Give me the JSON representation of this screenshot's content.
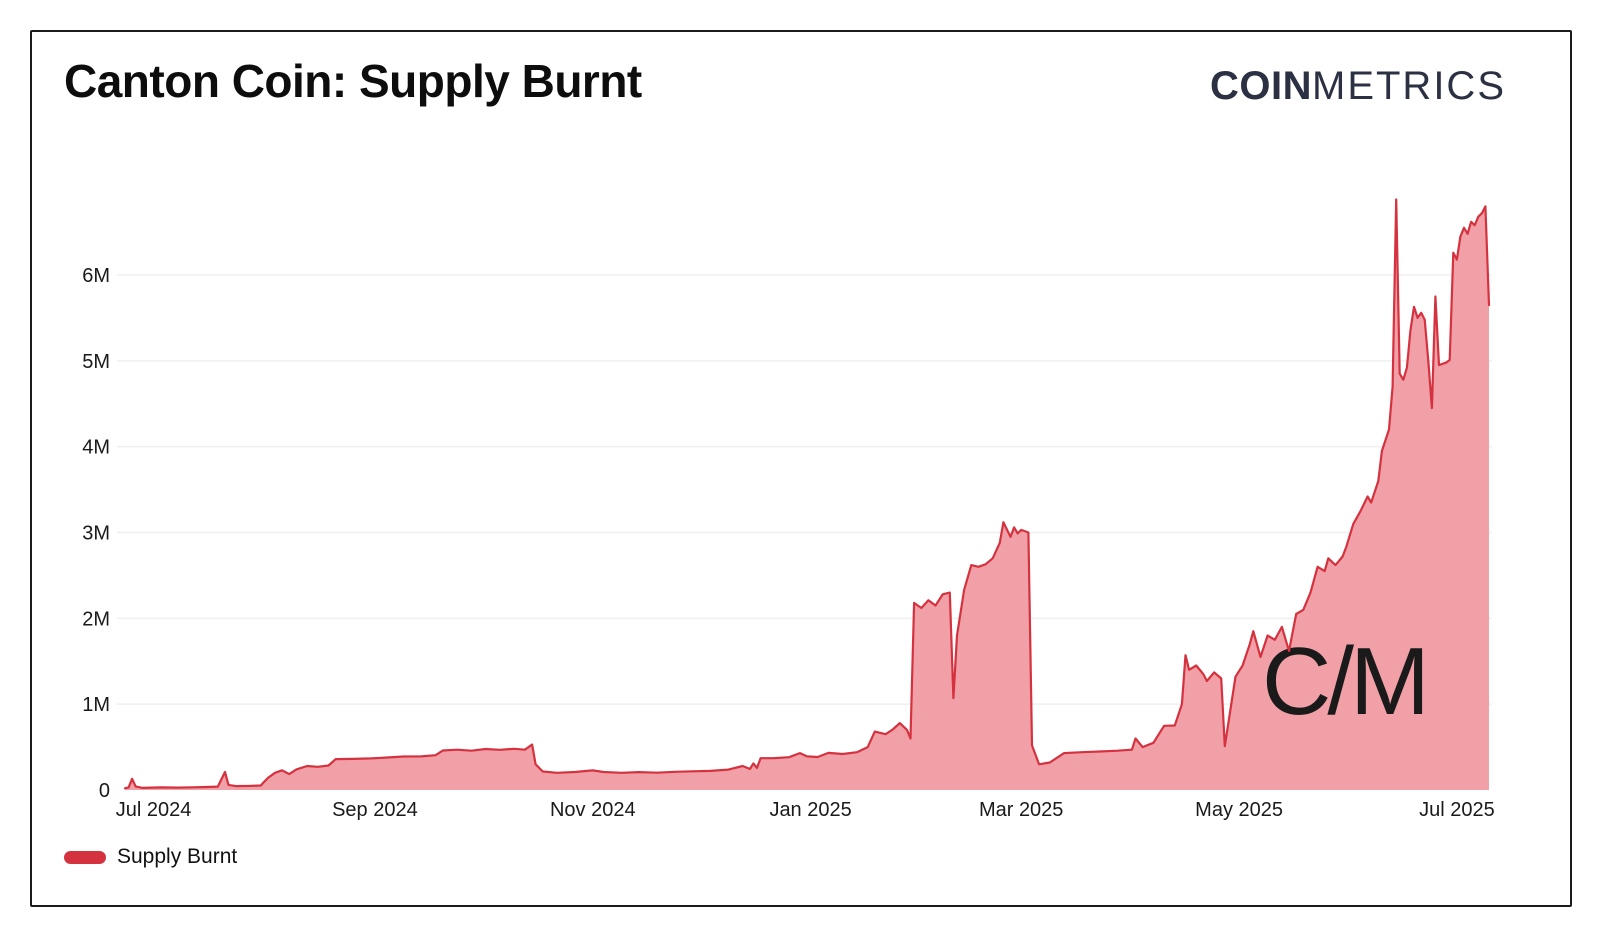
{
  "header": {
    "title": "Canton Coin: Supply Burnt",
    "logo_bold": "COIN",
    "logo_light": "METRICS"
  },
  "legend": {
    "items": [
      {
        "label": "Supply Burnt",
        "color": "#d5323f"
      }
    ]
  },
  "watermark": "C/M",
  "colors": {
    "area_fill": "#f1a0a7",
    "line": "#d5323f",
    "gridline": "#f0eff0",
    "axis_text": "#1a1a1a",
    "logo": "#2b3142",
    "border": "#1b1b1b",
    "watermark": "rgba(255,255,255,0.5)"
  },
  "chart_data": {
    "type": "area",
    "title": "Canton Coin: Supply Burnt",
    "xlabel": "",
    "ylabel": "",
    "grid": "horizontal-only",
    "legend_position": "bottom-left",
    "x_range": [
      "2024-06-23",
      "2025-07-10"
    ],
    "ylim": [
      0,
      7000000
    ],
    "y_ticks": [
      {
        "value": 0,
        "label": "0"
      },
      {
        "value": 1000000,
        "label": "1M"
      },
      {
        "value": 2000000,
        "label": "2M"
      },
      {
        "value": 3000000,
        "label": "3M"
      },
      {
        "value": 4000000,
        "label": "4M"
      },
      {
        "value": 5000000,
        "label": "5M"
      },
      {
        "value": 6000000,
        "label": "6M"
      }
    ],
    "x_ticks": [
      {
        "date": "2024-07-01",
        "label": "Jul 2024"
      },
      {
        "date": "2024-09-01",
        "label": "Sep 2024"
      },
      {
        "date": "2024-11-01",
        "label": "Nov 2024"
      },
      {
        "date": "2025-01-01",
        "label": "Jan 2025"
      },
      {
        "date": "2025-03-01",
        "label": "Mar 2025"
      },
      {
        "date": "2025-05-01",
        "label": "May 2025"
      },
      {
        "date": "2025-07-01",
        "label": "Jul 2025"
      }
    ],
    "series": [
      {
        "name": "Supply Burnt",
        "points": [
          [
            "2024-06-23",
            20000
          ],
          [
            "2024-06-24",
            30000
          ],
          [
            "2024-06-25",
            130000
          ],
          [
            "2024-06-26",
            40000
          ],
          [
            "2024-06-28",
            25000
          ],
          [
            "2024-07-03",
            30000
          ],
          [
            "2024-07-08",
            28000
          ],
          [
            "2024-07-12",
            32000
          ],
          [
            "2024-07-16",
            35000
          ],
          [
            "2024-07-19",
            40000
          ],
          [
            "2024-07-21",
            210000
          ],
          [
            "2024-07-22",
            60000
          ],
          [
            "2024-07-24",
            45000
          ],
          [
            "2024-07-28",
            48000
          ],
          [
            "2024-07-31",
            52000
          ],
          [
            "2024-08-02",
            140000
          ],
          [
            "2024-08-04",
            200000
          ],
          [
            "2024-08-06",
            230000
          ],
          [
            "2024-08-08",
            185000
          ],
          [
            "2024-08-10",
            240000
          ],
          [
            "2024-08-13",
            280000
          ],
          [
            "2024-08-16",
            270000
          ],
          [
            "2024-08-19",
            285000
          ],
          [
            "2024-08-21",
            360000
          ],
          [
            "2024-08-26",
            362000
          ],
          [
            "2024-08-31",
            368000
          ],
          [
            "2024-09-05",
            380000
          ],
          [
            "2024-09-09",
            390000
          ],
          [
            "2024-09-14",
            392000
          ],
          [
            "2024-09-18",
            405000
          ],
          [
            "2024-09-20",
            460000
          ],
          [
            "2024-09-24",
            470000
          ],
          [
            "2024-09-28",
            458000
          ],
          [
            "2024-10-02",
            478000
          ],
          [
            "2024-10-06",
            468000
          ],
          [
            "2024-10-10",
            480000
          ],
          [
            "2024-10-13",
            470000
          ],
          [
            "2024-10-15",
            530000
          ],
          [
            "2024-10-16",
            300000
          ],
          [
            "2024-10-18",
            215000
          ],
          [
            "2024-10-22",
            200000
          ],
          [
            "2024-10-27",
            210000
          ],
          [
            "2024-11-01",
            228000
          ],
          [
            "2024-11-04",
            210000
          ],
          [
            "2024-11-09",
            200000
          ],
          [
            "2024-11-14",
            208000
          ],
          [
            "2024-11-19",
            202000
          ],
          [
            "2024-11-24",
            212000
          ],
          [
            "2024-11-29",
            218000
          ],
          [
            "2024-12-04",
            222000
          ],
          [
            "2024-12-09",
            238000
          ],
          [
            "2024-12-13",
            280000
          ],
          [
            "2024-12-15",
            245000
          ],
          [
            "2024-12-16",
            310000
          ],
          [
            "2024-12-17",
            258000
          ],
          [
            "2024-12-18",
            370000
          ],
          [
            "2024-12-22",
            372000
          ],
          [
            "2024-12-26",
            382000
          ],
          [
            "2024-12-29",
            430000
          ],
          [
            "2024-12-31",
            392000
          ],
          [
            "2025-01-03",
            385000
          ],
          [
            "2025-01-06",
            432000
          ],
          [
            "2025-01-10",
            420000
          ],
          [
            "2025-01-14",
            440000
          ],
          [
            "2025-01-17",
            500000
          ],
          [
            "2025-01-19",
            680000
          ],
          [
            "2025-01-22",
            650000
          ],
          [
            "2025-01-24",
            705000
          ],
          [
            "2025-01-26",
            780000
          ],
          [
            "2025-01-28",
            700000
          ],
          [
            "2025-01-29",
            600000
          ],
          [
            "2025-01-30",
            2180000
          ],
          [
            "2025-02-01",
            2120000
          ],
          [
            "2025-02-03",
            2210000
          ],
          [
            "2025-02-05",
            2150000
          ],
          [
            "2025-02-07",
            2280000
          ],
          [
            "2025-02-09",
            2300000
          ],
          [
            "2025-02-10",
            1070000
          ],
          [
            "2025-02-11",
            1800000
          ],
          [
            "2025-02-13",
            2330000
          ],
          [
            "2025-02-15",
            2620000
          ],
          [
            "2025-02-17",
            2600000
          ],
          [
            "2025-02-19",
            2630000
          ],
          [
            "2025-02-21",
            2700000
          ],
          [
            "2025-02-23",
            2880000
          ],
          [
            "2025-02-24",
            3120000
          ],
          [
            "2025-02-26",
            2950000
          ],
          [
            "2025-02-27",
            3060000
          ],
          [
            "2025-02-28",
            2990000
          ],
          [
            "2025-03-01",
            3030000
          ],
          [
            "2025-03-03",
            3000000
          ],
          [
            "2025-03-04",
            520000
          ],
          [
            "2025-03-06",
            300000
          ],
          [
            "2025-03-09",
            320000
          ],
          [
            "2025-03-13",
            430000
          ],
          [
            "2025-03-18",
            440000
          ],
          [
            "2025-03-23",
            448000
          ],
          [
            "2025-03-28",
            458000
          ],
          [
            "2025-04-01",
            470000
          ],
          [
            "2025-04-02",
            600000
          ],
          [
            "2025-04-04",
            500000
          ],
          [
            "2025-04-07",
            550000
          ],
          [
            "2025-04-10",
            748000
          ],
          [
            "2025-04-13",
            752000
          ],
          [
            "2025-04-15",
            1000000
          ],
          [
            "2025-04-16",
            1570000
          ],
          [
            "2025-04-17",
            1400000
          ],
          [
            "2025-04-19",
            1450000
          ],
          [
            "2025-04-21",
            1350000
          ],
          [
            "2025-04-22",
            1270000
          ],
          [
            "2025-04-24",
            1370000
          ],
          [
            "2025-04-26",
            1300000
          ],
          [
            "2025-04-27",
            510000
          ],
          [
            "2025-04-30",
            1320000
          ],
          [
            "2025-05-02",
            1450000
          ],
          [
            "2025-05-04",
            1700000
          ],
          [
            "2025-05-05",
            1850000
          ],
          [
            "2025-05-07",
            1550000
          ],
          [
            "2025-05-09",
            1800000
          ],
          [
            "2025-05-11",
            1750000
          ],
          [
            "2025-05-13",
            1900000
          ],
          [
            "2025-05-15",
            1620000
          ],
          [
            "2025-05-17",
            2050000
          ],
          [
            "2025-05-19",
            2100000
          ],
          [
            "2025-05-21",
            2300000
          ],
          [
            "2025-05-23",
            2600000
          ],
          [
            "2025-05-25",
            2550000
          ],
          [
            "2025-05-26",
            2700000
          ],
          [
            "2025-05-28",
            2620000
          ],
          [
            "2025-05-30",
            2720000
          ],
          [
            "2025-05-31",
            2830000
          ],
          [
            "2025-06-02",
            3100000
          ],
          [
            "2025-06-04",
            3250000
          ],
          [
            "2025-06-06",
            3420000
          ],
          [
            "2025-06-07",
            3350000
          ],
          [
            "2025-06-09",
            3600000
          ],
          [
            "2025-06-10",
            3950000
          ],
          [
            "2025-06-12",
            4200000
          ],
          [
            "2025-06-13",
            4700000
          ],
          [
            "2025-06-14",
            6880000
          ],
          [
            "2025-06-15",
            4850000
          ],
          [
            "2025-06-16",
            4780000
          ],
          [
            "2025-06-17",
            4920000
          ],
          [
            "2025-06-18",
            5350000
          ],
          [
            "2025-06-19",
            5630000
          ],
          [
            "2025-06-20",
            5500000
          ],
          [
            "2025-06-21",
            5560000
          ],
          [
            "2025-06-22",
            5480000
          ],
          [
            "2025-06-23",
            5000000
          ],
          [
            "2025-06-24",
            4450000
          ],
          [
            "2025-06-25",
            5750000
          ],
          [
            "2025-06-26",
            4950000
          ],
          [
            "2025-06-28",
            4980000
          ],
          [
            "2025-06-29",
            5010000
          ],
          [
            "2025-06-30",
            6260000
          ],
          [
            "2025-07-01",
            6180000
          ],
          [
            "2025-07-02",
            6450000
          ],
          [
            "2025-07-03",
            6550000
          ],
          [
            "2025-07-04",
            6480000
          ],
          [
            "2025-07-05",
            6620000
          ],
          [
            "2025-07-06",
            6580000
          ],
          [
            "2025-07-07",
            6680000
          ],
          [
            "2025-07-08",
            6720000
          ],
          [
            "2025-07-09",
            6800000
          ],
          [
            "2025-07-10",
            5650000
          ]
        ]
      }
    ]
  }
}
